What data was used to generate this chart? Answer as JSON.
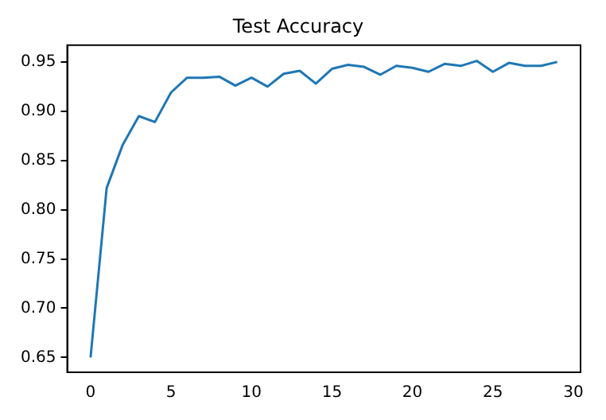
{
  "chart_data": {
    "type": "line",
    "title": "Test Accuracy",
    "x": [
      0,
      1,
      2,
      3,
      4,
      5,
      6,
      7,
      8,
      9,
      10,
      11,
      12,
      13,
      14,
      15,
      16,
      17,
      18,
      19,
      20,
      21,
      22,
      23,
      24,
      25,
      26,
      27,
      28,
      29
    ],
    "series": [
      {
        "color": "#1f77b4",
        "values": [
          0.65,
          0.822,
          0.866,
          0.895,
          0.889,
          0.919,
          0.934,
          0.934,
          0.935,
          0.926,
          0.934,
          0.925,
          0.938,
          0.941,
          0.928,
          0.943,
          0.947,
          0.945,
          0.937,
          0.946,
          0.944,
          0.94,
          0.948,
          0.946,
          0.951,
          0.94,
          0.949,
          0.946,
          0.946,
          0.95
        ]
      }
    ],
    "xlim": [
      -1.45,
      30.45
    ],
    "xticks": [
      0,
      5,
      10,
      15,
      20,
      25,
      30
    ],
    "ylim": [
      0.635,
      0.967
    ],
    "yticks": [
      {
        "value": 0.65,
        "label": "0.65"
      },
      {
        "value": 0.7,
        "label": "0.70"
      },
      {
        "value": 0.75,
        "label": "0.75"
      },
      {
        "value": 0.8,
        "label": "0.80"
      },
      {
        "value": 0.85,
        "label": "0.85"
      },
      {
        "value": 0.9,
        "label": "0.90"
      },
      {
        "value": 0.95,
        "label": "0.95"
      }
    ],
    "grid": false,
    "legend": false,
    "marker": "none",
    "line_style": "solid"
  }
}
